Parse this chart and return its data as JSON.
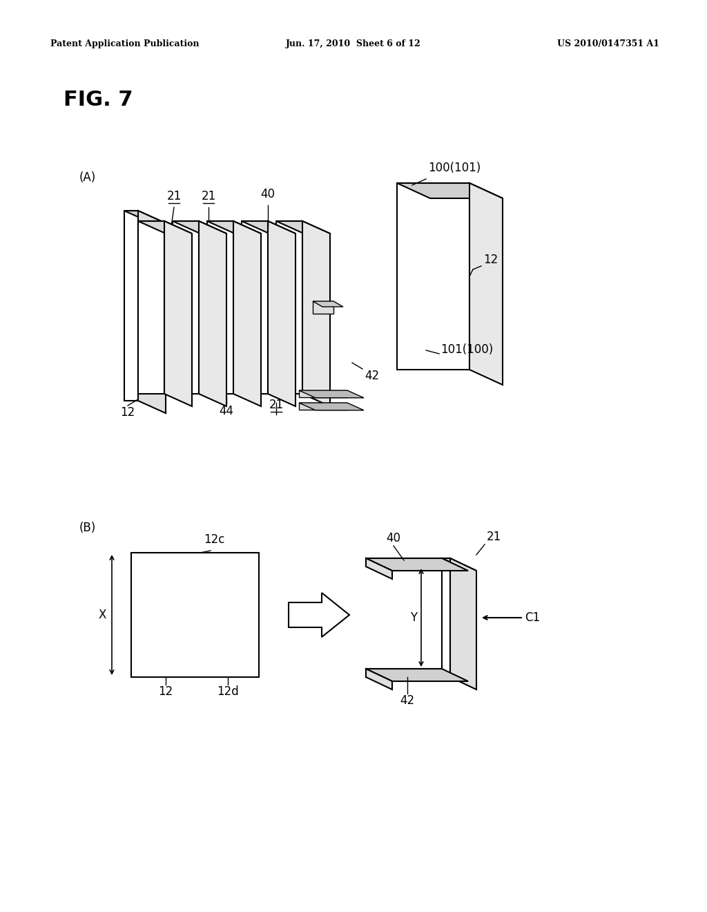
{
  "bg_color": "#ffffff",
  "header_left": "Patent Application Publication",
  "header_mid": "Jun. 17, 2010  Sheet 6 of 12",
  "header_right": "US 2010/0147351 A1",
  "fig_label": "FIG. 7",
  "section_A_label": "(A)",
  "section_B_label": "(B)"
}
